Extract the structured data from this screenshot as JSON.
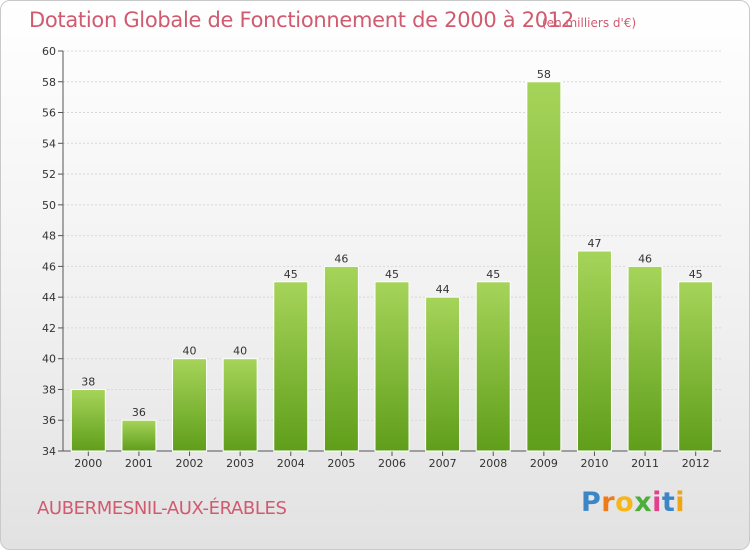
{
  "header": {
    "title": "Dotation Globale de Fonctionnement de 2000 à 2012",
    "subtitle": "(en milliers d'€)"
  },
  "footer": {
    "commune": "AUBERMESNIL-AUX-ÉRABLES",
    "logo_text": "Proxiti"
  },
  "colors": {
    "title": "#d15a6f",
    "bar_top": "#a6d45a",
    "bar_bottom": "#5f9e1a",
    "grid": "#d8d8d8"
  },
  "chart_data": {
    "type": "bar",
    "title": "Dotation Globale de Fonctionnement de 2000 à 2012",
    "categories": [
      "2000",
      "2001",
      "2002",
      "2003",
      "2004",
      "2005",
      "2006",
      "2007",
      "2008",
      "2009",
      "2010",
      "2011",
      "2012"
    ],
    "values": [
      38,
      36,
      40,
      40,
      45,
      46,
      45,
      44,
      45,
      58,
      47,
      46,
      45
    ],
    "ylim": [
      34,
      60
    ],
    "yticks": [
      34,
      36,
      38,
      40,
      42,
      44,
      46,
      48,
      50,
      52,
      54,
      56,
      58,
      60
    ],
    "xlabel": "",
    "ylabel": "",
    "grid": true,
    "show_value_labels": true
  }
}
